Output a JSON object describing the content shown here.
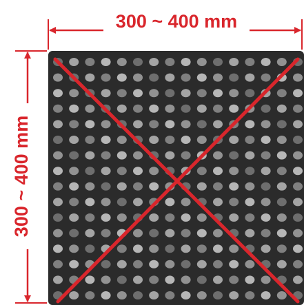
{
  "dimensions": {
    "width_label": "300 ~ 400 mm",
    "height_label": "300 ~ 400 mm"
  }
}
